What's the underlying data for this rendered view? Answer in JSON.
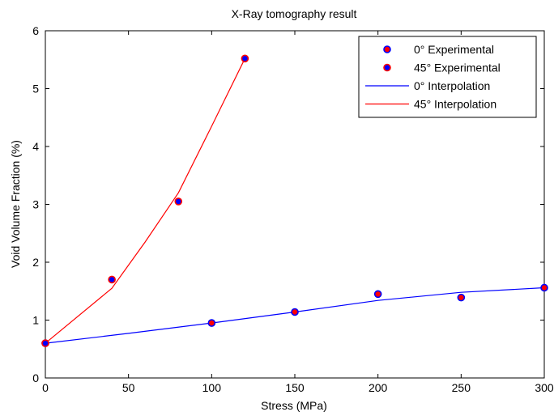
{
  "chart_data": {
    "type": "line",
    "title": "X-Ray tomography result",
    "xlabel": "Stress (MPa)",
    "ylabel": "Void Volume Fraction (%)",
    "xlim": [
      0,
      300
    ],
    "ylim": [
      0,
      6
    ],
    "xticks": [
      0,
      50,
      100,
      150,
      200,
      250,
      300
    ],
    "yticks": [
      0,
      1,
      2,
      3,
      4,
      5,
      6
    ],
    "grid": false,
    "legend_position": "top-right",
    "series": [
      {
        "name": "0° Experimental",
        "kind": "scatter",
        "marker_fill": "#ff0000",
        "marker_edge": "#0000ff",
        "x": [
          0,
          100,
          150,
          200,
          250,
          300
        ],
        "y": [
          0.6,
          0.95,
          1.14,
          1.45,
          1.39,
          1.56
        ]
      },
      {
        "name": "45° Experimental",
        "kind": "scatter",
        "marker_fill": "#0000ff",
        "marker_edge": "#ff0000",
        "x": [
          0,
          40,
          80,
          120
        ],
        "y": [
          0.6,
          1.7,
          3.05,
          5.52
        ]
      },
      {
        "name": "0° Interpolation",
        "kind": "line",
        "color": "#0000ff",
        "x": [
          0,
          50,
          100,
          150,
          200,
          250,
          300
        ],
        "y": [
          0.6,
          0.77,
          0.95,
          1.14,
          1.34,
          1.48,
          1.56
        ]
      },
      {
        "name": "45° Interpolation",
        "kind": "line",
        "color": "#ff0000",
        "x": [
          0,
          40,
          60,
          80,
          100,
          120
        ],
        "y": [
          0.6,
          1.55,
          2.35,
          3.2,
          4.35,
          5.52
        ]
      }
    ]
  }
}
